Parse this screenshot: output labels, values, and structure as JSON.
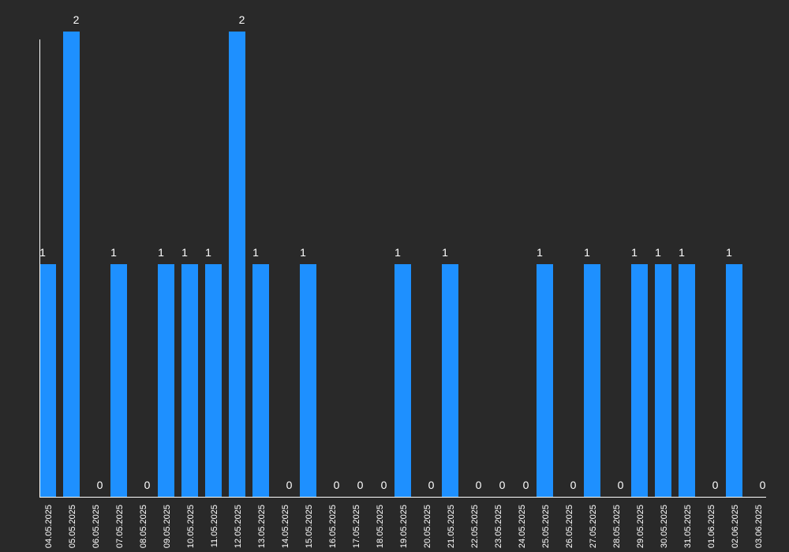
{
  "colors": {
    "background": "#292929",
    "bar": "#1e90ff",
    "axis": "#ffffff",
    "text": "#ffffff"
  },
  "chart_data": {
    "type": "bar",
    "title": "",
    "xlabel": "",
    "ylabel": "",
    "ylim": [
      0,
      2
    ],
    "grid": false,
    "legend": "none",
    "categories": [
      "04.05.2025",
      "05.05.2025",
      "06.05.2025",
      "07.05.2025",
      "08.05.2025",
      "09.05.2025",
      "10.05.2025",
      "11.05.2025",
      "12.05.2025",
      "13.05.2025",
      "14.05.2025",
      "15.05.2025",
      "16.05.2025",
      "17.05.2025",
      "18.05.2025",
      "19.05.2025",
      "20.05.2025",
      "21.05.2025",
      "22.05.2025",
      "23.05.2025",
      "24.05.2025",
      "25.05.2025",
      "26.05.2025",
      "27.05.2025",
      "28.05.2025",
      "29.05.2025",
      "30.05.2025",
      "31.05.2025",
      "01.06.2025",
      "02.06.2025",
      "03.06.2025"
    ],
    "values": [
      1,
      2,
      0,
      1,
      0,
      1,
      1,
      1,
      2,
      1,
      0,
      1,
      0,
      0,
      0,
      1,
      0,
      1,
      0,
      0,
      0,
      1,
      0,
      1,
      0,
      1,
      1,
      1,
      0,
      1,
      0
    ]
  }
}
